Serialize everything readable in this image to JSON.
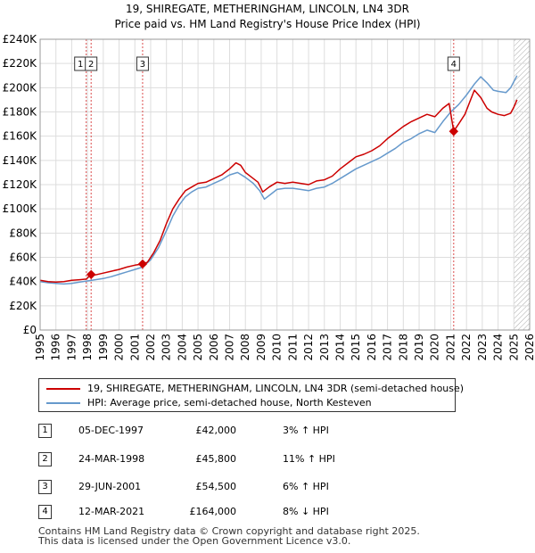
{
  "chart_data": {
    "type": "line",
    "title": "19, SHIREGATE, METHERINGHAM, LINCOLN, LN4 3DR",
    "subtitle": "Price paid vs. HM Land Registry's House Price Index (HPI)",
    "xlim": [
      1995,
      2026
    ],
    "ylim": [
      0,
      240000
    ],
    "x_ticks": [
      "1995",
      "1996",
      "1997",
      "1998",
      "1999",
      "2000",
      "2001",
      "2002",
      "2003",
      "2004",
      "2005",
      "2006",
      "2007",
      "2008",
      "2009",
      "2010",
      "2011",
      "2012",
      "2013",
      "2014",
      "2015",
      "2016",
      "2017",
      "2018",
      "2019",
      "2020",
      "2021",
      "2022",
      "2023",
      "2024",
      "2025",
      "2026"
    ],
    "y_ticks": [
      {
        "value": 0,
        "label": "£0"
      },
      {
        "value": 20000,
        "label": "£20K"
      },
      {
        "value": 40000,
        "label": "£40K"
      },
      {
        "value": 60000,
        "label": "£60K"
      },
      {
        "value": 80000,
        "label": "£80K"
      },
      {
        "value": 100000,
        "label": "£100K"
      },
      {
        "value": 120000,
        "label": "£120K"
      },
      {
        "value": 140000,
        "label": "£140K"
      },
      {
        "value": 160000,
        "label": "£160K"
      },
      {
        "value": 180000,
        "label": "£180K"
      },
      {
        "value": 200000,
        "label": "£200K"
      },
      {
        "value": 220000,
        "label": "£220K"
      },
      {
        "value": 240000,
        "label": "£240K"
      }
    ],
    "future_hatch_from": 2025.0,
    "series": [
      {
        "name": "19, SHIREGATE, METHERINGHAM, LINCOLN, LN4 3DR (semi-detached house)",
        "color": "#cc0000",
        "x": [
          1995.0,
          1995.5,
          1996.0,
          1996.5,
          1997.0,
          1997.5,
          1997.92,
          1998.23,
          1998.5,
          1999.0,
          1999.5,
          2000.0,
          2000.5,
          2001.0,
          2001.49,
          2001.8,
          2002.2,
          2002.6,
          2003.0,
          2003.4,
          2003.8,
          2004.2,
          2004.6,
          2005.0,
          2005.5,
          2006.0,
          2006.5,
          2007.0,
          2007.4,
          2007.7,
          2008.0,
          2008.4,
          2008.8,
          2009.1,
          2009.5,
          2010.0,
          2010.5,
          2011.0,
          2011.5,
          2012.0,
          2012.5,
          2013.0,
          2013.5,
          2014.0,
          2014.5,
          2015.0,
          2015.5,
          2016.0,
          2016.5,
          2017.0,
          2017.5,
          2018.0,
          2018.5,
          2019.0,
          2019.5,
          2020.0,
          2020.5,
          2020.9,
          2021.19,
          2021.5,
          2021.9,
          2022.2,
          2022.5,
          2022.9,
          2023.3,
          2023.6,
          2024.0,
          2024.4,
          2024.8,
          2025.0,
          2025.2
        ],
        "y": [
          41000,
          40000,
          39500,
          40000,
          41000,
          41500,
          42000,
          45800,
          45500,
          47000,
          48500,
          50000,
          52000,
          53500,
          54500,
          56000,
          64000,
          74000,
          88000,
          100000,
          108000,
          115000,
          118000,
          121000,
          122000,
          125000,
          128000,
          133000,
          138000,
          136000,
          130000,
          126000,
          122000,
          114000,
          118000,
          122000,
          121000,
          122000,
          121000,
          120000,
          123000,
          124000,
          127000,
          133000,
          138000,
          143000,
          145000,
          148000,
          152000,
          158000,
          163000,
          168000,
          172000,
          175000,
          178000,
          176000,
          183000,
          187000,
          164000,
          170000,
          178000,
          188000,
          198000,
          192000,
          183000,
          180000,
          178000,
          177000,
          179000,
          184000,
          190000
        ]
      },
      {
        "name": "HPI: Average price, semi-detached house, North Kesteven",
        "color": "#6699cc",
        "x": [
          1995.0,
          1995.5,
          1996.0,
          1996.5,
          1997.0,
          1997.5,
          1998.0,
          1998.5,
          1999.0,
          1999.5,
          2000.0,
          2000.5,
          2001.0,
          2001.5,
          2002.0,
          2002.5,
          2003.0,
          2003.4,
          2003.8,
          2004.2,
          2004.6,
          2005.0,
          2005.5,
          2006.0,
          2006.5,
          2007.0,
          2007.5,
          2008.0,
          2008.5,
          2008.9,
          2009.2,
          2009.6,
          2010.0,
          2010.5,
          2011.0,
          2011.5,
          2012.0,
          2012.5,
          2013.0,
          2013.5,
          2014.0,
          2014.5,
          2015.0,
          2015.5,
          2016.0,
          2016.5,
          2017.0,
          2017.5,
          2018.0,
          2018.5,
          2019.0,
          2019.5,
          2020.0,
          2020.5,
          2021.0,
          2021.5,
          2022.0,
          2022.5,
          2022.9,
          2023.3,
          2023.7,
          2024.0,
          2024.5,
          2024.8,
          2025.0,
          2025.2
        ],
        "y": [
          40000,
          39000,
          38500,
          38000,
          38500,
          39500,
          40500,
          41500,
          42500,
          44000,
          46000,
          48000,
          50000,
          52000,
          58000,
          68000,
          82000,
          94000,
          103000,
          110000,
          114000,
          117000,
          118000,
          121000,
          124000,
          128000,
          130000,
          126000,
          121000,
          115000,
          108000,
          112000,
          116000,
          117000,
          117000,
          116000,
          115000,
          117000,
          118000,
          121000,
          125000,
          129000,
          133000,
          136000,
          139000,
          142000,
          146000,
          150000,
          155000,
          158000,
          162000,
          165000,
          163000,
          172000,
          180000,
          186000,
          194000,
          203000,
          209000,
          204000,
          198000,
          197000,
          196000,
          200000,
          205000,
          210000
        ]
      }
    ],
    "markers": [
      {
        "label": "1",
        "x": 1997.92,
        "y": 42000,
        "show_point": false
      },
      {
        "label": "2",
        "x": 1998.23,
        "y": 45800,
        "show_point": true
      },
      {
        "label": "3",
        "x": 2001.49,
        "y": 54500,
        "show_point": true
      },
      {
        "label": "4",
        "x": 2021.19,
        "y": 164000,
        "show_point": true
      }
    ],
    "marker_boxes": [
      {
        "label": "1",
        "x": 1997.92,
        "anchor": "right"
      },
      {
        "label": "2",
        "x": 1998.23,
        "anchor": "center"
      },
      {
        "label": "3",
        "x": 2001.49,
        "anchor": "center"
      },
      {
        "label": "4",
        "x": 2021.19,
        "anchor": "center"
      }
    ]
  },
  "legend": {
    "items": [
      {
        "label": "19, SHIREGATE, METHERINGHAM, LINCOLN, LN4 3DR (semi-detached house)",
        "color": "#cc0000"
      },
      {
        "label": "HPI: Average price, semi-detached house, North Kesteven",
        "color": "#6699cc"
      }
    ]
  },
  "transactions": [
    {
      "num": "1",
      "date": "05-DEC-1997",
      "price": "£42,000",
      "hpi": "3% ↑ HPI"
    },
    {
      "num": "2",
      "date": "24-MAR-1998",
      "price": "£45,800",
      "hpi": "11% ↑ HPI"
    },
    {
      "num": "3",
      "date": "29-JUN-2001",
      "price": "£54,500",
      "hpi": "6% ↑ HPI"
    },
    {
      "num": "4",
      "date": "12-MAR-2021",
      "price": "£164,000",
      "hpi": "8% ↓ HPI"
    }
  ],
  "footer": {
    "line1": "Contains HM Land Registry data © Crown copyright and database right 2025.",
    "line2": "This data is licensed under the Open Government Licence v3.0."
  }
}
